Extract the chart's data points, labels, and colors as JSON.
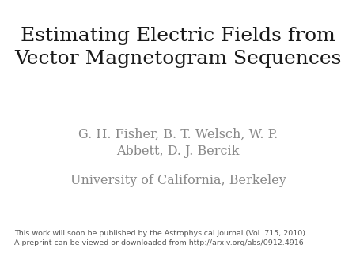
{
  "background_color": "#ffffff",
  "title_line1": "Estimating Electric Fields from",
  "title_line2": "Vector Magnetogram Sequences",
  "title_color": "#1a1a1a",
  "title_fontsize": 18,
  "title_font": "serif",
  "authors_line1": "G. H. Fisher, B. T. Welsch, W. P.",
  "authors_line2": "Abbett, D. J. Bercik",
  "authors_color": "#888888",
  "authors_fontsize": 11.5,
  "authors_font": "serif",
  "affiliation": "University of California, Berkeley",
  "affiliation_color": "#888888",
  "affiliation_fontsize": 11.5,
  "affiliation_font": "serif",
  "footnote_line1": "This work will soon be published by the Astrophysical Journal (Vol. 715, 2010).",
  "footnote_line2": "A preprint can be viewed or downloaded from http://arxiv.org/abs/0912.4916",
  "footnote_color": "#555555",
  "footnote_fontsize": 6.8,
  "footnote_font": "sans-serif"
}
